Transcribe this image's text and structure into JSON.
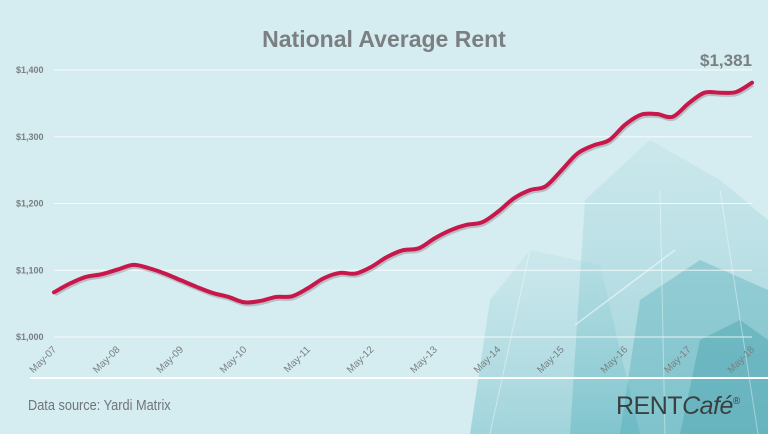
{
  "chart_data": {
    "type": "line",
    "title": "National Average Rent",
    "xlabel": "",
    "ylabel": "",
    "ylim": [
      1000,
      1400
    ],
    "yticks": [
      1000,
      1100,
      1200,
      1300,
      1400
    ],
    "ytick_labels": [
      "$1,000",
      "$1,100",
      "$1,200",
      "$1,300",
      "$1,400"
    ],
    "xtick_labels": [
      "May-07",
      "May-08",
      "May-09",
      "May-10",
      "May-11",
      "May-12",
      "May-13",
      "May-14",
      "May-15",
      "May-16",
      "May-17",
      "May-18"
    ],
    "xlim": [
      "2007-05",
      "2018-05"
    ],
    "grid": true,
    "line_color": "#c8174a",
    "end_label": "$1,381",
    "series": [
      {
        "x": [
          "2007-05",
          "2007-08",
          "2007-11",
          "2008-02",
          "2008-05",
          "2008-08",
          "2008-11",
          "2009-02",
          "2009-05",
          "2009-08",
          "2009-11",
          "2010-02",
          "2010-05",
          "2010-08",
          "2010-11",
          "2011-02",
          "2011-05",
          "2011-08",
          "2011-11",
          "2012-02",
          "2012-05",
          "2012-08",
          "2012-11",
          "2013-02",
          "2013-05",
          "2013-08",
          "2013-11",
          "2014-02",
          "2014-05",
          "2014-08",
          "2014-11",
          "2015-02",
          "2015-05",
          "2015-08",
          "2015-11",
          "2016-02",
          "2016-05",
          "2016-08",
          "2016-11",
          "2017-02",
          "2017-05",
          "2017-08",
          "2017-11",
          "2018-02",
          "2018-05"
        ],
        "values": [
          1067,
          1080,
          1090,
          1094,
          1101,
          1108,
          1103,
          1095,
          1085,
          1075,
          1066,
          1060,
          1052,
          1054,
          1060,
          1061,
          1073,
          1088,
          1096,
          1095,
          1105,
          1120,
          1130,
          1133,
          1148,
          1160,
          1168,
          1172,
          1188,
          1208,
          1220,
          1226,
          1250,
          1275,
          1287,
          1295,
          1318,
          1333,
          1334,
          1330,
          1350,
          1366,
          1366,
          1367,
          1381
        ]
      }
    ]
  },
  "footer": {
    "source": "Data source:  Yardi Matrix"
  },
  "logo": {
    "text": "RENTCafé®"
  }
}
